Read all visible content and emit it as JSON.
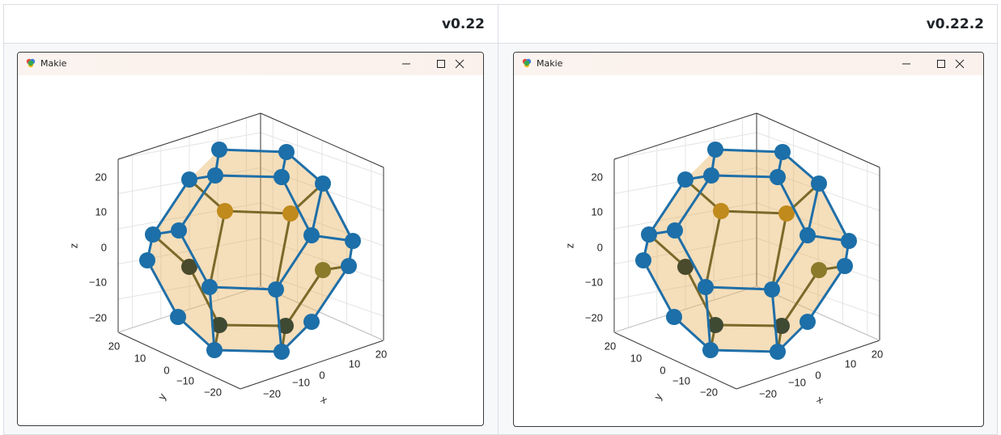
{
  "table": {
    "headers": [
      "v0.22",
      "v0.22.2"
    ],
    "cells": [
      {
        "window_title": "Makie",
        "plot": {
          "z_label": "z",
          "y_label": "y",
          "x_label": "x",
          "z_ticks": [
            "20",
            "10",
            "0",
            "−10",
            "−20"
          ],
          "y_ticks": [
            "20",
            "10",
            "0",
            "−10",
            "−20"
          ],
          "x_ticks": [
            "−20",
            "−10",
            "0",
            "10",
            "20"
          ]
        }
      },
      {
        "window_title": "Makie",
        "plot": {
          "z_label": "z",
          "y_label": "y",
          "x_label": "x",
          "z_ticks": [
            "20",
            "10",
            "0",
            "−10",
            "−20"
          ],
          "y_ticks": [
            "20",
            "10",
            "0",
            "−10",
            "−20"
          ],
          "x_ticks": [
            "−20",
            "−10",
            "0",
            "10",
            "20"
          ]
        }
      }
    ]
  }
}
